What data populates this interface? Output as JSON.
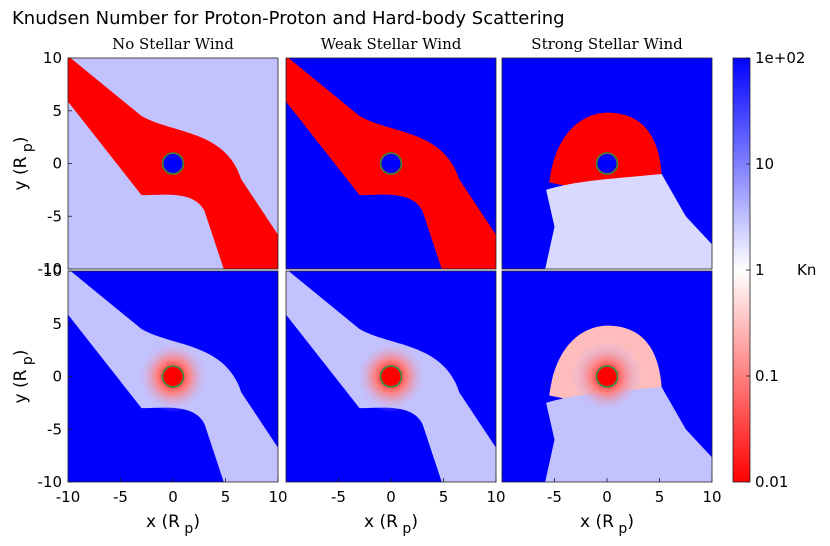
{
  "figure": {
    "title": "Knudsen Number for Proton-Proton and Hard-body Scattering"
  },
  "chart_data": [
    {
      "type": "heatmap",
      "title": "No Stellar Wind",
      "row_label": "Proton-Proton",
      "ylabel": "y (R p)",
      "xlabel": "",
      "xlim": [
        -10,
        10
      ],
      "ylim": [
        -10,
        10
      ],
      "xticks": [],
      "yticks": [
        10,
        5,
        0,
        -5,
        -10
      ],
      "background_kn": 3,
      "regions": [
        {
          "kind": "stream",
          "kn": 0.01
        },
        {
          "kind": "core",
          "kn": 100
        }
      ]
    },
    {
      "type": "heatmap",
      "title": "Weak Stellar Wind",
      "row_label": "Proton-Proton",
      "xlim": [
        -10,
        10
      ],
      "ylim": [
        -10,
        10
      ],
      "xticks": [],
      "yticks": [],
      "background_kn": 100,
      "regions": [
        {
          "kind": "stream",
          "kn": 0.01
        },
        {
          "kind": "core",
          "kn": 100
        }
      ]
    },
    {
      "type": "heatmap",
      "title": "Strong Stellar Wind",
      "row_label": "Proton-Proton",
      "xlim": [
        -10,
        10
      ],
      "ylim": [
        -10,
        10
      ],
      "xticks": [],
      "yticks": [],
      "background_kn": 100,
      "regions": [
        {
          "kind": "cap",
          "kn": 0.01
        },
        {
          "kind": "tail",
          "kn": 2
        },
        {
          "kind": "core",
          "kn": 100
        }
      ]
    },
    {
      "type": "heatmap",
      "title": "",
      "row_label": "Hard-body",
      "ylabel": "y (R p)",
      "xlabel": "x (R p)",
      "xlim": [
        -10,
        10
      ],
      "ylim": [
        -10,
        10
      ],
      "xticks": [
        -10,
        -5,
        0,
        5,
        10
      ],
      "yticks": [
        10,
        5,
        0,
        -5,
        -10
      ],
      "background_kn": 100,
      "regions": [
        {
          "kind": "stream",
          "kn": 3
        },
        {
          "kind": "glow",
          "kn": 0.1
        },
        {
          "kind": "core",
          "kn": 0.01
        }
      ]
    },
    {
      "type": "heatmap",
      "title": "",
      "row_label": "Hard-body",
      "xlabel": "x (R p)",
      "xlim": [
        -10,
        10
      ],
      "ylim": [
        -10,
        10
      ],
      "xticks": [
        -5,
        0,
        5,
        10
      ],
      "yticks": [],
      "background_kn": 100,
      "regions": [
        {
          "kind": "stream",
          "kn": 3
        },
        {
          "kind": "glow",
          "kn": 0.1
        },
        {
          "kind": "core",
          "kn": 0.01
        }
      ]
    },
    {
      "type": "heatmap",
      "title": "",
      "row_label": "Hard-body",
      "xlabel": "x (R p)",
      "xlim": [
        -10,
        10
      ],
      "ylim": [
        -10,
        10
      ],
      "xticks": [
        -5,
        0,
        5,
        10
      ],
      "yticks": [],
      "background_kn": 100,
      "regions": [
        {
          "kind": "cap",
          "kn": 0.3
        },
        {
          "kind": "tail",
          "kn": 3
        },
        {
          "kind": "glow",
          "kn": 0.1
        },
        {
          "kind": "core",
          "kn": 0.01
        }
      ]
    }
  ],
  "colorbar": {
    "label": "Kn",
    "scale": "log",
    "range": [
      0.01,
      100
    ],
    "ticks": [
      {
        "value": 100,
        "label": "1e+02"
      },
      {
        "value": 10,
        "label": "10"
      },
      {
        "value": 1,
        "label": "1"
      },
      {
        "value": 0.1,
        "label": "0.1"
      },
      {
        "value": 0.01,
        "label": "0.01"
      }
    ],
    "colors": {
      "low": "#ff0000",
      "mid": "#ffffff",
      "high": "#0000ff"
    }
  },
  "colors": {
    "ring": "#2e8b3e",
    "axis": "#222222"
  }
}
